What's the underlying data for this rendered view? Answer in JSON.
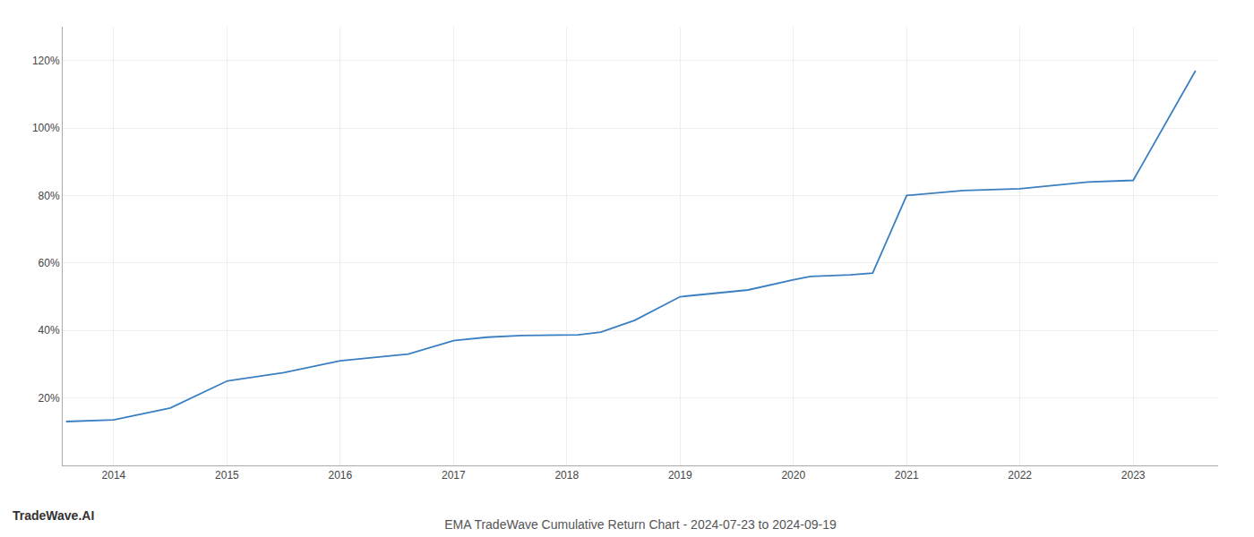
{
  "chart_data": {
    "type": "line",
    "title": "EMA TradeWave Cumulative Return Chart - 2024-07-23 to 2024-09-19",
    "annotations": [
      "TradeWave.AI"
    ],
    "x": [
      2013.58,
      2014.0,
      2014.5,
      2015.0,
      2015.5,
      2016.0,
      2016.3,
      2016.6,
      2017.0,
      2017.3,
      2017.6,
      2018.0,
      2018.1,
      2018.3,
      2018.6,
      2019.0,
      2019.3,
      2019.6,
      2020.0,
      2020.15,
      2020.5,
      2020.7,
      2021.0,
      2021.3,
      2021.5,
      2022.0,
      2022.3,
      2022.6,
      2023.0,
      2023.55
    ],
    "values": [
      13,
      13.5,
      17,
      25,
      27.5,
      31,
      32,
      33,
      37,
      38,
      38.5,
      38.5,
      38.7,
      39.5,
      43,
      50,
      51,
      52,
      55,
      56,
      56.5,
      57,
      80,
      81,
      81.5,
      82,
      83,
      84,
      84.5,
      117
    ],
    "color": "#3a7fc1",
    "xlim": [
      2013.55,
      2023.75
    ],
    "xticks": [
      2014,
      2015,
      2016,
      2017,
      2018,
      2019,
      2020,
      2021,
      2022,
      2023
    ],
    "ylim": [
      0,
      130
    ],
    "yticks": [
      {
        "value": 20,
        "label": "20%"
      },
      {
        "value": 40,
        "label": "40%"
      },
      {
        "value": 60,
        "label": "60%"
      },
      {
        "value": 80,
        "label": "80%"
      },
      {
        "value": 100,
        "label": "100%"
      },
      {
        "value": 120,
        "label": "120%"
      }
    ],
    "grid": true
  }
}
